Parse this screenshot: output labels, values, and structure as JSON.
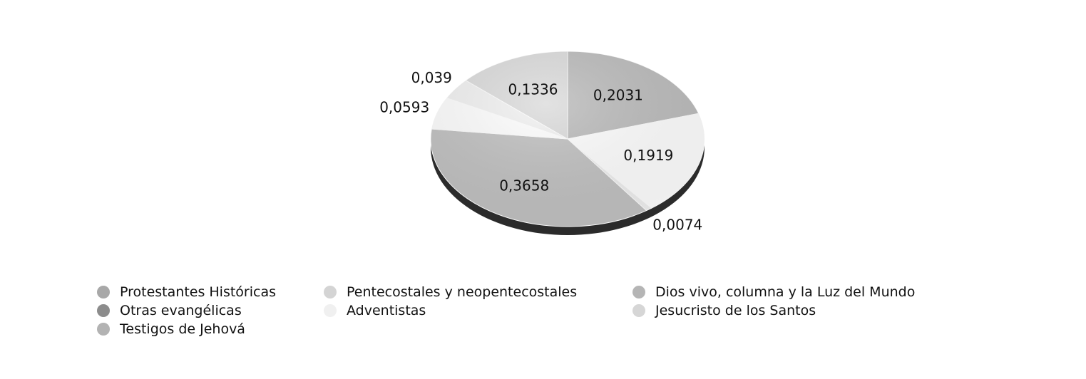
{
  "chart_data": {
    "type": "pie",
    "title": "",
    "categories": [
      "Protestantes Históricas",
      "Pentecostales y neopentecostales",
      "Dios vivo, columna y la Luz del Mundo",
      "Otras evangélicas",
      "Adventistas",
      "Jesucristo de los Santos",
      "Testigos de Jehová"
    ],
    "values": [
      0.2031,
      0.1919,
      0.0074,
      0.3658,
      0.0593,
      0.039,
      0.1336
    ],
    "data_labels": [
      "0,2031",
      "0,1919",
      "0,0074",
      "0,3658",
      "0,0593",
      "0,039",
      "0,1336"
    ],
    "colors": [
      "#bdbdbd",
      "#ffffff",
      "#f0f0f0",
      "#c2c2c2",
      "#ffffff",
      "#f2f2f2",
      "#dcdcdc"
    ],
    "legend_colors": [
      "#a8a8a8",
      "#d4d4d4",
      "#b5b5b5",
      "#8c8c8c",
      "#f0f0f0",
      "#d6d6d6",
      "#b3b3b3"
    ],
    "legend_position": "bottom"
  }
}
